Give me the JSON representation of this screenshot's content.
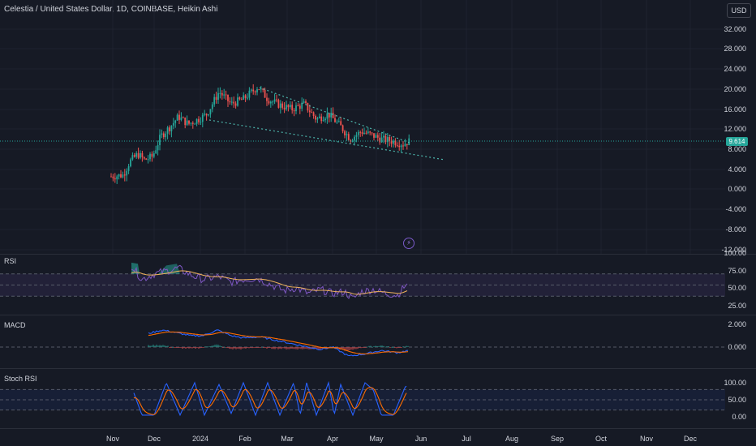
{
  "header": {
    "title": "Celestia / United States Dollar, 1D, COINBASE, Heikin Ashi",
    "currency": "USD"
  },
  "price_scale": {
    "ticks": [
      "32.000",
      "28.000",
      "24.000",
      "20.000",
      "16.000",
      "12.000",
      "8.000",
      "4.000",
      "0.000",
      "-4.000",
      "-8.000",
      "-12.000"
    ],
    "current_price": "9.614"
  },
  "panels": {
    "rsi": {
      "label": "RSI",
      "ticks": [
        "100.00",
        "75.00",
        "50.00",
        "25.00"
      ]
    },
    "macd": {
      "label": "MACD",
      "ticks": [
        "2.000",
        "0.000"
      ]
    },
    "stoch": {
      "label": "Stoch RSI",
      "ticks": [
        "100.00",
        "50.00",
        "0.00"
      ]
    }
  },
  "time_axis": [
    "Nov",
    "Dec",
    "2024",
    "Feb",
    "Mar",
    "Apr",
    "May",
    "Jun",
    "Jul",
    "Aug",
    "Sep",
    "Oct",
    "Nov",
    "Dec"
  ],
  "colors": {
    "background": "#161a25",
    "up": "#26a69a",
    "down": "#ef5350",
    "rsi_line": "#7e57c2",
    "rsi_ma": "#f0b35a",
    "macd_line": "#2962ff",
    "signal_line": "#ff6d00",
    "stoch_k": "#2962ff",
    "stoch_d": "#ff6d00"
  },
  "icons": {
    "alert": "lightning-icon"
  },
  "chart_data": [
    {
      "type": "candlestick",
      "title": "Celestia / United States Dollar, 1D, COINBASE, Heikin Ashi",
      "x": [
        "Nov",
        "Dec",
        "2024",
        "Feb",
        "Mar",
        "Apr",
        "May",
        "Jun"
      ],
      "close_approx": [
        2.5,
        6.0,
        12.5,
        20.0,
        16.0,
        12.5,
        11.0,
        9.614
      ],
      "ylim": [
        -12,
        32
      ],
      "last": 9.614
    },
    {
      "type": "line",
      "name": "RSI",
      "ylim": [
        0,
        100
      ],
      "last": 50
    },
    {
      "type": "line",
      "name": "MACD",
      "ylim": [
        -1,
        2.5
      ],
      "last": 0
    },
    {
      "type": "line",
      "name": "Stoch RSI",
      "ylim": [
        0,
        100
      ],
      "last": 90
    }
  ]
}
